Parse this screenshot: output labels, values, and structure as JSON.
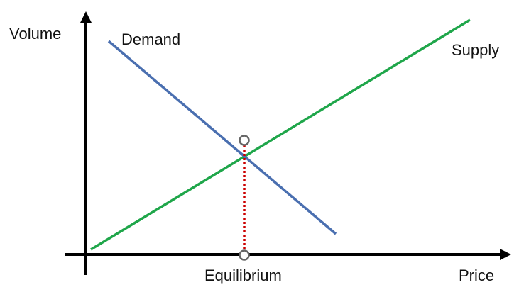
{
  "labels": {
    "y_axis": "Volume",
    "x_axis": "Price",
    "demand": "Demand",
    "supply": "Supply",
    "equilibrium": "Equilibrium"
  },
  "colors": {
    "axis": "#000000",
    "demand": "#4a6fb0",
    "supply": "#1fa64a",
    "equilibrium_guide": "#cc0000",
    "marker_stroke": "#666666",
    "marker_fill": "#ffffff"
  }
}
